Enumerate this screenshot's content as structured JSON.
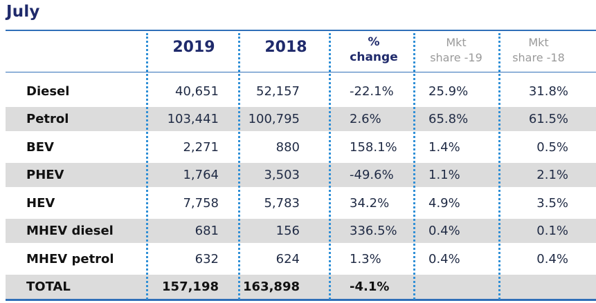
{
  "title": "July",
  "headers": {
    "col2019": "2019",
    "col2018": "2018",
    "change_line1": "%",
    "change_line2": "change",
    "ms19_line1": "Mkt",
    "ms19_line2": "share -19",
    "ms18_line1": "Mkt",
    "ms18_line2": "share -18"
  },
  "rows": [
    {
      "label": "Diesel",
      "v2019": "40,651",
      "v2018": "52,157",
      "change": "-22.1%",
      "ms19": "25.9%",
      "ms18": "31.8%"
    },
    {
      "label": "Petrol",
      "v2019": "103,441",
      "v2018": "100,795",
      "change": "2.6%",
      "ms19": "65.8%",
      "ms18": "61.5%"
    },
    {
      "label": "BEV",
      "v2019": "2,271",
      "v2018": "880",
      "change": "158.1%",
      "ms19": "1.4%",
      "ms18": "0.5%"
    },
    {
      "label": "PHEV",
      "v2019": "1,764",
      "v2018": "3,503",
      "change": "-49.6%",
      "ms19": "1.1%",
      "ms18": "2.1%"
    },
    {
      "label": "HEV",
      "v2019": "7,758",
      "v2018": "5,783",
      "change": "34.2%",
      "ms19": "4.9%",
      "ms18": "3.5%"
    },
    {
      "label": "MHEV diesel",
      "v2019": "681",
      "v2018": "156",
      "change": "336.5%",
      "ms19": "0.4%",
      "ms18": "0.1%"
    },
    {
      "label": "MHEV petrol",
      "v2019": "632",
      "v2018": "624",
      "change": "1.3%",
      "ms19": "0.4%",
      "ms18": "0.4%"
    }
  ],
  "total": {
    "label": "TOTAL",
    "v2019": "157,198",
    "v2018": "163,898",
    "change": "-4.1%"
  },
  "colors": {
    "accent_blue": "#2f6fb8",
    "dotted_separator": "#2f8fd6",
    "shaded_row": "#dcdcdc",
    "title": "#1f2a6b"
  }
}
